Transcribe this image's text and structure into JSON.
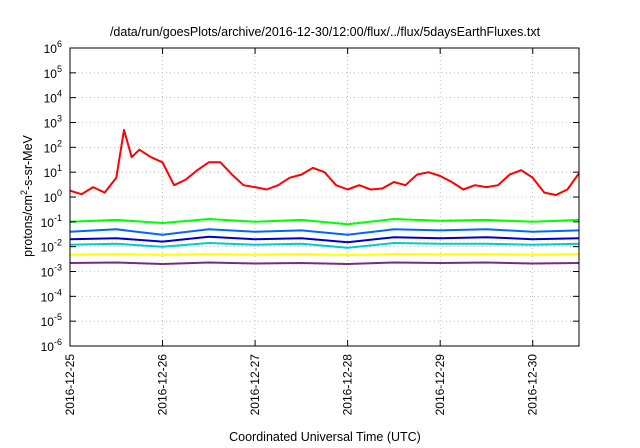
{
  "chart_data": {
    "type": "line",
    "title": "/data/run/goesPlots/archive/2016-12-30/12:00/flux/../flux/5daysEarthFluxes.txt",
    "xlabel": "Coordinated Universal Time (UTC)",
    "ylabel": {
      "base": "protons/cm",
      "sup": "2",
      "rest": "-s-sr-MeV"
    },
    "yscale": "log",
    "ylim": [
      1e-06,
      1000000.0
    ],
    "yticks": [
      {
        "base": "10",
        "exp": "-6"
      },
      {
        "base": "10",
        "exp": "-5"
      },
      {
        "base": "10",
        "exp": "-4"
      },
      {
        "base": "10",
        "exp": "-3"
      },
      {
        "base": "10",
        "exp": "-2"
      },
      {
        "base": "10",
        "exp": "-1"
      },
      {
        "base": "10",
        "exp": "0"
      },
      {
        "base": "10",
        "exp": "1"
      },
      {
        "base": "10",
        "exp": "2"
      },
      {
        "base": "10",
        "exp": "3"
      },
      {
        "base": "10",
        "exp": "4"
      },
      {
        "base": "10",
        "exp": "5"
      },
      {
        "base": "10",
        "exp": "6"
      }
    ],
    "xlim": [
      "2016-12-25",
      "2016-12-30T12:00"
    ],
    "xticks": [
      "2016-12-25",
      "2016-12-26",
      "2016-12-27",
      "2016-12-28",
      "2016-12-29",
      "2016-12-30"
    ],
    "grid": true,
    "series": [
      {
        "color": "#ff0000",
        "x": [
          "2016-12-25T00:00",
          "2016-12-25T03:00",
          "2016-12-25T06:00",
          "2016-12-25T09:00",
          "2016-12-25T12:00",
          "2016-12-25T14:00",
          "2016-12-25T16:00",
          "2016-12-25T18:00",
          "2016-12-25T21:00",
          "2016-12-26T00:00",
          "2016-12-26T03:00",
          "2016-12-26T06:00",
          "2016-12-26T09:00",
          "2016-12-26T12:00",
          "2016-12-26T15:00",
          "2016-12-26T18:00",
          "2016-12-26T21:00",
          "2016-12-27T00:00",
          "2016-12-27T03:00",
          "2016-12-27T06:00",
          "2016-12-27T09:00",
          "2016-12-27T12:00",
          "2016-12-27T15:00",
          "2016-12-27T18:00",
          "2016-12-27T21:00",
          "2016-12-28T00:00",
          "2016-12-28T03:00",
          "2016-12-28T06:00",
          "2016-12-28T09:00",
          "2016-12-28T12:00",
          "2016-12-28T15:00",
          "2016-12-28T18:00",
          "2016-12-28T21:00",
          "2016-12-29T00:00",
          "2016-12-29T03:00",
          "2016-12-29T06:00",
          "2016-12-29T09:00",
          "2016-12-29T12:00",
          "2016-12-29T15:00",
          "2016-12-29T18:00",
          "2016-12-29T21:00",
          "2016-12-30T00:00",
          "2016-12-30T03:00",
          "2016-12-30T06:00",
          "2016-12-30T09:00",
          "2016-12-30T12:00"
        ],
        "y": [
          1.8,
          1.3,
          2.5,
          1.5,
          6,
          500,
          40,
          80,
          40,
          25,
          3,
          5,
          12,
          25,
          25,
          8,
          3,
          2.5,
          2,
          3,
          6,
          8,
          15,
          10,
          3,
          2,
          3,
          2,
          2.2,
          4,
          3,
          8,
          10,
          7,
          4,
          2,
          3,
          2.5,
          3,
          8,
          12,
          6,
          1.5,
          1.2,
          2,
          9
        ]
      },
      {
        "color": "#00ff00",
        "x": [
          "2016-12-25T00:00",
          "2016-12-25T12:00",
          "2016-12-26T00:00",
          "2016-12-26T12:00",
          "2016-12-27T00:00",
          "2016-12-27T12:00",
          "2016-12-28T00:00",
          "2016-12-28T12:00",
          "2016-12-29T00:00",
          "2016-12-29T12:00",
          "2016-12-30T00:00",
          "2016-12-30T12:00"
        ],
        "y": [
          0.1,
          0.12,
          0.09,
          0.13,
          0.1,
          0.12,
          0.08,
          0.13,
          0.11,
          0.12,
          0.1,
          0.12
        ]
      },
      {
        "color": "#0066ff",
        "x": [
          "2016-12-25T00:00",
          "2016-12-25T12:00",
          "2016-12-26T00:00",
          "2016-12-26T12:00",
          "2016-12-27T00:00",
          "2016-12-27T12:00",
          "2016-12-28T00:00",
          "2016-12-28T12:00",
          "2016-12-29T00:00",
          "2016-12-29T12:00",
          "2016-12-30T00:00",
          "2016-12-30T12:00"
        ],
        "y": [
          0.04,
          0.05,
          0.03,
          0.05,
          0.04,
          0.045,
          0.03,
          0.05,
          0.045,
          0.05,
          0.04,
          0.045
        ]
      },
      {
        "color": "#0000cc",
        "x": [
          "2016-12-25T00:00",
          "2016-12-25T12:00",
          "2016-12-26T00:00",
          "2016-12-26T12:00",
          "2016-12-27T00:00",
          "2016-12-27T12:00",
          "2016-12-28T00:00",
          "2016-12-28T12:00",
          "2016-12-29T00:00",
          "2016-12-29T12:00",
          "2016-12-30T00:00",
          "2016-12-30T12:00"
        ],
        "y": [
          0.02,
          0.022,
          0.016,
          0.025,
          0.02,
          0.022,
          0.015,
          0.024,
          0.022,
          0.024,
          0.02,
          0.022
        ]
      },
      {
        "color": "#00cccc",
        "x": [
          "2016-12-25T00:00",
          "2016-12-25T12:00",
          "2016-12-26T00:00",
          "2016-12-26T12:00",
          "2016-12-27T00:00",
          "2016-12-27T12:00",
          "2016-12-28T00:00",
          "2016-12-28T12:00",
          "2016-12-29T00:00",
          "2016-12-29T12:00",
          "2016-12-30T00:00",
          "2016-12-30T12:00"
        ],
        "y": [
          0.012,
          0.013,
          0.01,
          0.014,
          0.012,
          0.013,
          0.009,
          0.014,
          0.013,
          0.013,
          0.012,
          0.013
        ]
      },
      {
        "color": "#ffff00",
        "x": [
          "2016-12-25T00:00",
          "2016-12-25T12:00",
          "2016-12-26T00:00",
          "2016-12-26T12:00",
          "2016-12-27T00:00",
          "2016-12-27T12:00",
          "2016-12-28T00:00",
          "2016-12-28T12:00",
          "2016-12-29T00:00",
          "2016-12-29T12:00",
          "2016-12-30T00:00",
          "2016-12-30T12:00"
        ],
        "y": [
          0.0048,
          0.005,
          0.0047,
          0.005,
          0.0048,
          0.005,
          0.0046,
          0.005,
          0.0049,
          0.005,
          0.0048,
          0.005
        ]
      },
      {
        "color": "#7a2c7a",
        "x": [
          "2016-12-25T00:00",
          "2016-12-25T12:00",
          "2016-12-26T00:00",
          "2016-12-26T12:00",
          "2016-12-27T00:00",
          "2016-12-27T12:00",
          "2016-12-28T00:00",
          "2016-12-28T12:00",
          "2016-12-29T00:00",
          "2016-12-29T12:00",
          "2016-12-30T00:00",
          "2016-12-30T12:00"
        ],
        "y": [
          0.0022,
          0.0023,
          0.002,
          0.0023,
          0.0021,
          0.0022,
          0.002,
          0.0023,
          0.0022,
          0.0023,
          0.0021,
          0.0022
        ]
      }
    ]
  }
}
